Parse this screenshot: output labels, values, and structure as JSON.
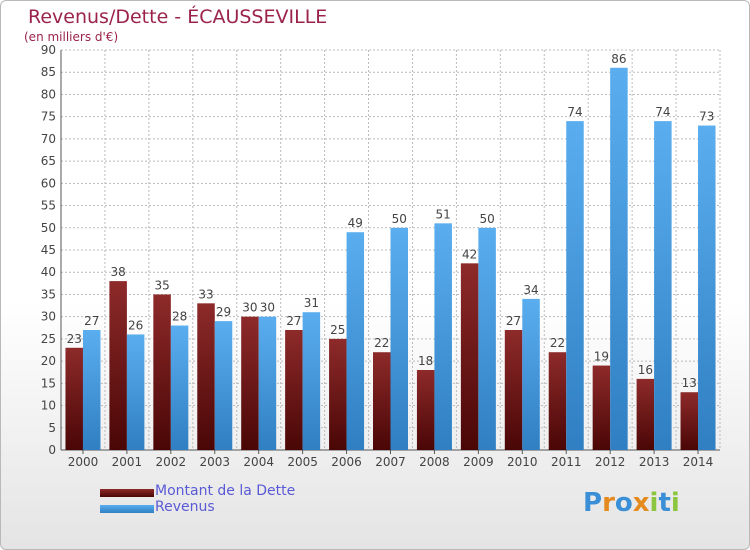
{
  "header": {
    "title": "Revenus/Dette - ÉCAUSSEVILLE",
    "subtitle": "(en milliers d'€)"
  },
  "legend": {
    "items": [
      {
        "label": "Montant de la Dette",
        "color": "#7b1818"
      },
      {
        "label": "Revenus",
        "color": "#4aa3e8"
      }
    ]
  },
  "logo": {
    "text": "Proxiti"
  },
  "colors": {
    "dette": "#7b1818",
    "revenus": "#4aa3e8",
    "grid": "#bbbbbb",
    "label": "#444444"
  },
  "chart_data": {
    "type": "bar",
    "title": "Revenus/Dette - ÉCAUSSEVILLE",
    "subtitle": "(en milliers d'€)",
    "categories": [
      "2000",
      "2001",
      "2002",
      "2003",
      "2004",
      "2005",
      "2006",
      "2007",
      "2008",
      "2009",
      "2010",
      "2011",
      "2012",
      "2013",
      "2014"
    ],
    "series": [
      {
        "name": "Montant de la Dette",
        "values": [
          23,
          38,
          35,
          33,
          30,
          27,
          25,
          22,
          18,
          42,
          27,
          22,
          19,
          16,
          13
        ]
      },
      {
        "name": "Revenus",
        "values": [
          27,
          26,
          28,
          29,
          30,
          31,
          49,
          50,
          51,
          50,
          34,
          74,
          86,
          74,
          73
        ]
      }
    ],
    "ylim": [
      0,
      90
    ],
    "yticks": [
      0,
      5,
      10,
      15,
      20,
      25,
      30,
      35,
      40,
      45,
      50,
      55,
      60,
      65,
      70,
      75,
      80,
      85,
      90
    ],
    "grid": true,
    "legend_position": "bottom-left"
  }
}
